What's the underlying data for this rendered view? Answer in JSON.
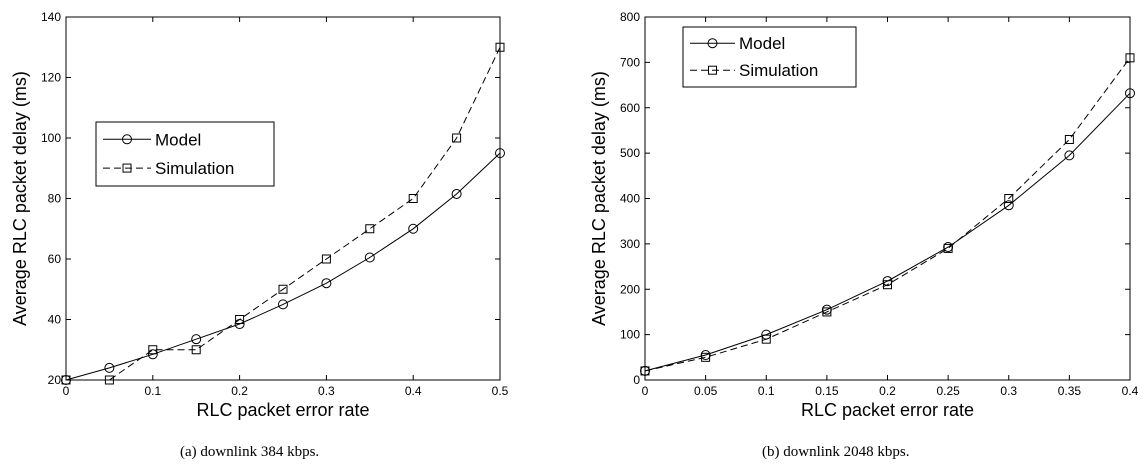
{
  "chart_data": [
    {
      "type": "line",
      "caption": "(a)  downlink  384 kbps.",
      "xlabel": "RLC packet error rate",
      "ylabel": "Average RLC packet delay (ms)",
      "xlim": [
        0,
        0.5
      ],
      "ylim": [
        20,
        140
      ],
      "xticks": [
        "0",
        "0.1",
        "0.2",
        "0.3",
        "0.4",
        "0.5"
      ],
      "yticks": [
        "20",
        "40",
        "60",
        "80",
        "100",
        "120",
        "140"
      ],
      "grid": false,
      "legend_position": "upper-left",
      "series": [
        {
          "name": "Model",
          "style": "solid",
          "marker": "circle",
          "x": [
            0,
            0.05,
            0.1,
            0.15,
            0.2,
            0.25,
            0.3,
            0.35,
            0.4,
            0.45,
            0.5
          ],
          "y": [
            20,
            24,
            28.5,
            33.5,
            38.5,
            45,
            52,
            60.5,
            70,
            81.5,
            95
          ]
        },
        {
          "name": "Simulation",
          "style": "dashed",
          "marker": "square",
          "x": [
            0,
            0.05,
            0.1,
            0.15,
            0.2,
            0.25,
            0.3,
            0.35,
            0.4,
            0.45,
            0.5
          ],
          "y": [
            20,
            20,
            30,
            30,
            40,
            50,
            60,
            70,
            80,
            100,
            130
          ]
        }
      ]
    },
    {
      "type": "line",
      "caption": "(b)  downlink  2048 kbps.",
      "xlabel": "RLC packet error rate",
      "ylabel": "Average RLC packet delay (ms)",
      "xlim": [
        0,
        0.4
      ],
      "ylim": [
        0,
        800
      ],
      "xticks": [
        "0",
        "0.05",
        "0.1",
        "0.15",
        "0.2",
        "0.25",
        "0.3",
        "0.35",
        "0.4"
      ],
      "yticks": [
        "0",
        "100",
        "200",
        "300",
        "400",
        "500",
        "600",
        "700",
        "800"
      ],
      "grid": false,
      "legend_position": "upper-left",
      "series": [
        {
          "name": "Model",
          "style": "solid",
          "marker": "circle",
          "x": [
            0,
            0.05,
            0.1,
            0.15,
            0.2,
            0.25,
            0.3,
            0.35,
            0.4
          ],
          "y": [
            20,
            55,
            100,
            155,
            218,
            293,
            385,
            495,
            632
          ]
        },
        {
          "name": "Simulation",
          "style": "dashed",
          "marker": "square",
          "x": [
            0,
            0.05,
            0.1,
            0.15,
            0.2,
            0.25,
            0.3,
            0.35,
            0.4
          ],
          "y": [
            20,
            50,
            90,
            150,
            210,
            290,
            400,
            530,
            710
          ]
        }
      ]
    }
  ]
}
